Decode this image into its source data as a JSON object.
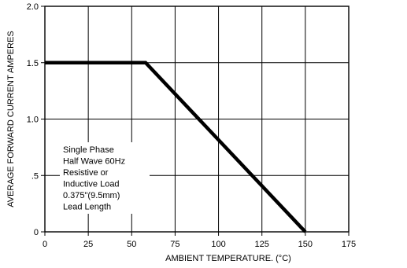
{
  "chart_data": {
    "type": "line",
    "xlabel": "AMBIENT TEMPERATURE. (°C)",
    "ylabel": "AVERAGE FORWARD CURRENT AMPERES",
    "xlim": [
      0,
      175
    ],
    "ylim": [
      0,
      2.0
    ],
    "x_ticks": [
      0,
      25,
      50,
      75,
      100,
      125,
      150,
      175
    ],
    "x_tick_labels": [
      "0",
      "25",
      "50",
      "75",
      "100",
      "125",
      "150",
      "175"
    ],
    "y_ticks": [
      0,
      0.5,
      1.0,
      1.5,
      2.0
    ],
    "y_tick_labels": [
      "0",
      ".5",
      "1.0",
      "1.5",
      "2.0"
    ],
    "grid": true,
    "series": [
      {
        "x": [
          0,
          58,
          150
        ],
        "y": [
          1.5,
          1.5,
          0
        ]
      }
    ],
    "annotation": [
      "Single Phase",
      "Half Wave 60Hz",
      "Resistive or",
      "Inductive Load",
      "0.375\"(9.5mm)",
      "Lead Length"
    ],
    "colors": {
      "line": "#000000",
      "grid": "#000000",
      "background": "#ffffff"
    }
  }
}
